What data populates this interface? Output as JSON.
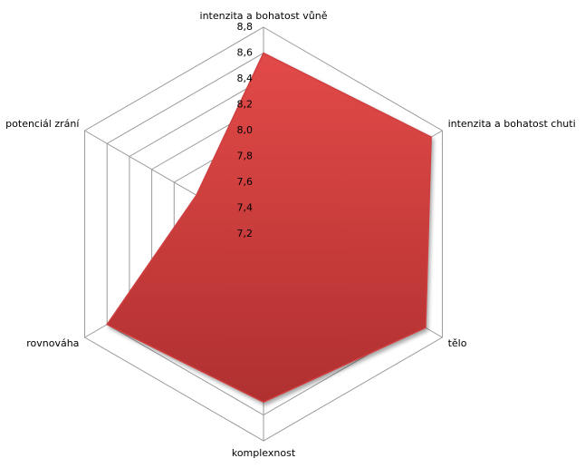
{
  "chart_data": {
    "type": "radar",
    "categories": [
      "intenzita a bohatost vůně",
      "intenzita a bohatost chuti",
      "tělo",
      "komplexnost",
      "rovnováha",
      "potenciál zrání"
    ],
    "values": [
      8.6,
      8.7,
      8.65,
      8.5,
      8.6,
      7.8
    ],
    "color": "#cf3f3f",
    "rlim": [
      7.2,
      8.8
    ],
    "rticks": [
      {
        "value": 7.2,
        "label": "7,2"
      },
      {
        "value": 7.4,
        "label": "7,4"
      },
      {
        "value": 7.6,
        "label": "7,6"
      },
      {
        "value": 7.8,
        "label": "7,8"
      },
      {
        "value": 8.0,
        "label": "8,0"
      },
      {
        "value": 8.2,
        "label": "8,2"
      },
      {
        "value": 8.4,
        "label": "8,4"
      },
      {
        "value": 8.6,
        "label": "8,6"
      },
      {
        "value": 8.8,
        "label": "8,8"
      }
    ],
    "grid": true
  }
}
